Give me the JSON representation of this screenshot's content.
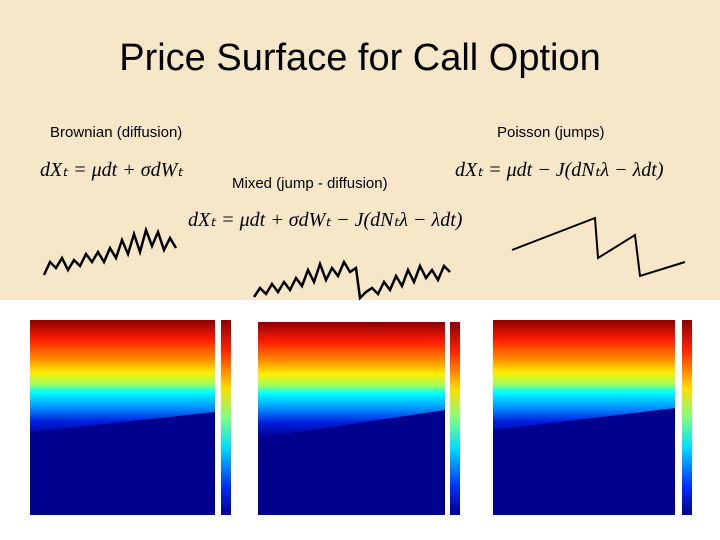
{
  "title": "Price Surface for Call Option",
  "panels": [
    {
      "label": "Brownian (diffusion)",
      "formula": "dXₜ = μdt + σdWₜ"
    },
    {
      "label": "Mixed (jump - diffusion)",
      "formula": "dXₜ = μdt + σdWₜ − J(dNₜλ − λdt)"
    },
    {
      "label": "Poisson (jumps)",
      "formula": "dXₜ = μdt − J(dNₜλ − λdt)"
    }
  ]
}
